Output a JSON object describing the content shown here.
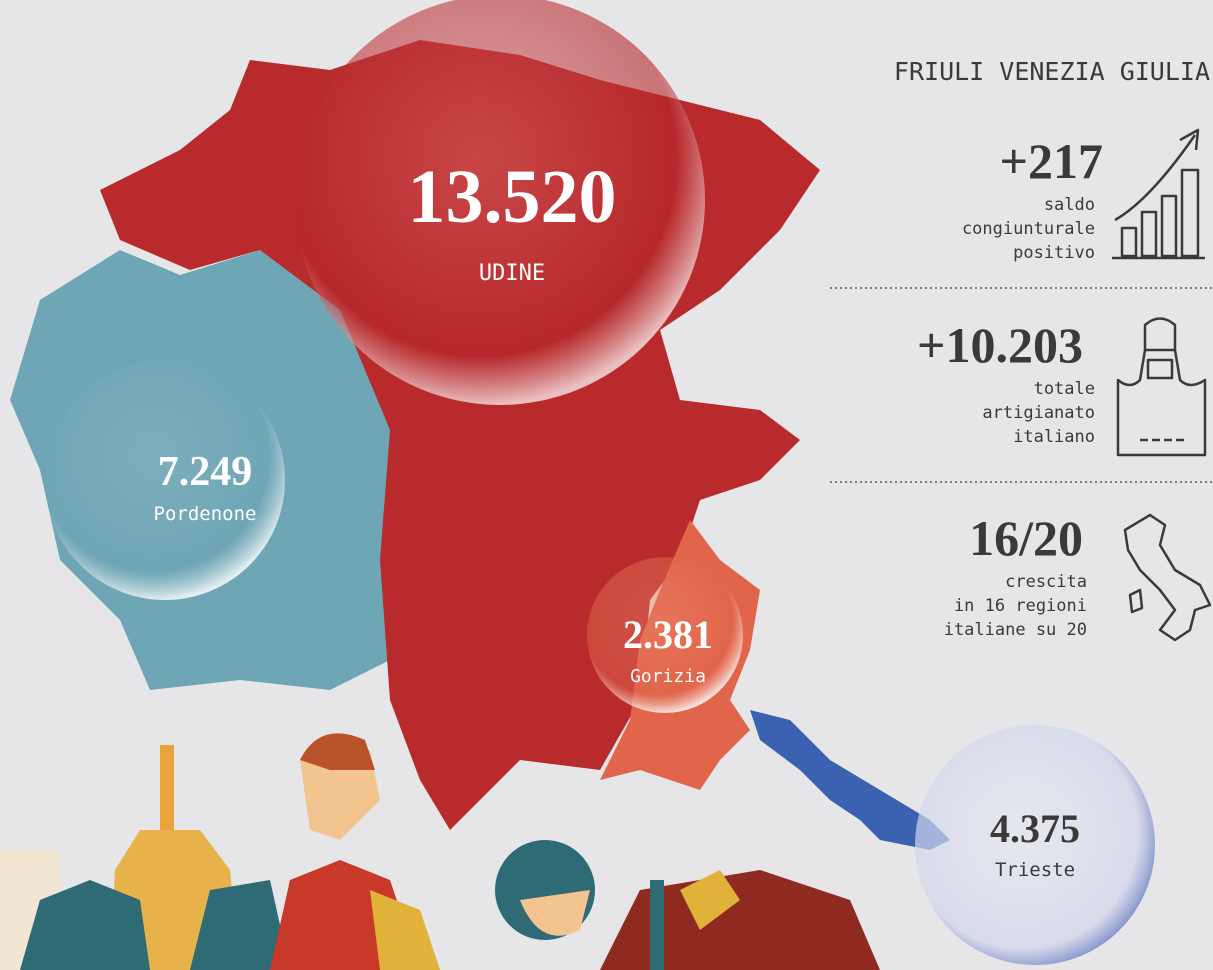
{
  "title": "FRIULI VENEZIA GIULIA",
  "provinces": [
    {
      "value": "13.520",
      "name": "UDINE"
    },
    {
      "value": "7.249",
      "name": "Pordenone"
    },
    {
      "value": "2.381",
      "name": "Gorizia"
    },
    {
      "value": "4.375",
      "name": "Trieste"
    }
  ],
  "stats": [
    {
      "value": "+217",
      "label": [
        "saldo",
        "congiunturale",
        "positivo"
      ]
    },
    {
      "value": "+10.203",
      "label": [
        "totale",
        "artigianato",
        "italiano"
      ]
    },
    {
      "value": "16/20",
      "label": [
        "crescita",
        "in 16 regioni",
        "italiane su 20"
      ]
    }
  ]
}
